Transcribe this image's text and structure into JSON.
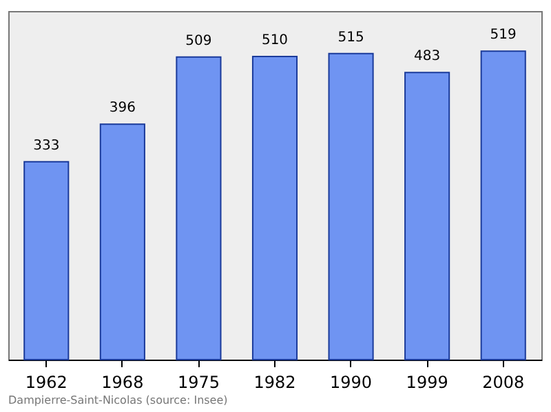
{
  "chart_data": {
    "type": "bar",
    "categories": [
      "1962",
      "1968",
      "1975",
      "1982",
      "1990",
      "1999",
      "2008"
    ],
    "values": [
      333,
      396,
      509,
      510,
      515,
      483,
      519
    ],
    "color": "#6f94f2",
    "data_labels": true,
    "grid": false,
    "annotations": [
      "Dampierre-Saint-Nicolas    (source: Insee)"
    ]
  }
}
